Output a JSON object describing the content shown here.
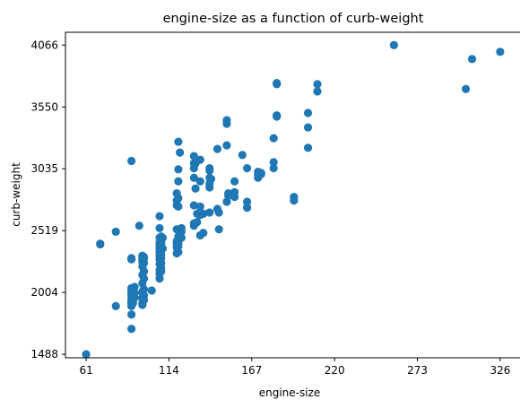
{
  "chart_data": {
    "type": "scatter",
    "title": "engine-size as a function of curb-weight",
    "xlabel": "engine-size",
    "ylabel": "curb-weight",
    "xlim": [
      47.75,
      339.25
    ],
    "ylim": [
      1459,
      4173
    ],
    "xticks": [
      61,
      114,
      167,
      220,
      273,
      326
    ],
    "yticks": [
      1488,
      2004,
      2519,
      3035,
      3550,
      4066
    ],
    "grid": false,
    "marker_color": "#1f77b4",
    "points": [
      [
        61,
        1488
      ],
      [
        70,
        2410
      ],
      [
        70,
        2405
      ],
      [
        80,
        1890
      ],
      [
        80,
        2510
      ],
      [
        90,
        1700
      ],
      [
        90,
        1820
      ],
      [
        90,
        1890
      ],
      [
        90,
        1910
      ],
      [
        90,
        1930
      ],
      [
        90,
        1950
      ],
      [
        90,
        1980
      ],
      [
        90,
        2000
      ],
      [
        90,
        2020
      ],
      [
        90,
        2040
      ],
      [
        90,
        2280
      ],
      [
        90,
        2290
      ],
      [
        90,
        3100
      ],
      [
        91,
        1915
      ],
      [
        91,
        1940
      ],
      [
        92,
        1960
      ],
      [
        92,
        2000
      ],
      [
        92,
        2050
      ],
      [
        95,
        2560
      ],
      [
        97,
        1900
      ],
      [
        97,
        1920
      ],
      [
        97,
        1960
      ],
      [
        97,
        2000
      ],
      [
        97,
        2010
      ],
      [
        97,
        2080
      ],
      [
        97,
        2150
      ],
      [
        97,
        2220
      ],
      [
        97,
        2260
      ],
      [
        97,
        2280
      ],
      [
        97,
        2300
      ],
      [
        97,
        2310
      ],
      [
        98,
        1940
      ],
      [
        98,
        1980
      ],
      [
        98,
        2030
      ],
      [
        98,
        2120
      ],
      [
        98,
        2180
      ],
      [
        98,
        2250
      ],
      [
        98,
        2290
      ],
      [
        98,
        2300
      ],
      [
        103,
        2020
      ],
      [
        108,
        2120
      ],
      [
        108,
        2160
      ],
      [
        108,
        2190
      ],
      [
        108,
        2240
      ],
      [
        108,
        2280
      ],
      [
        108,
        2310
      ],
      [
        108,
        2340
      ],
      [
        108,
        2370
      ],
      [
        108,
        2400
      ],
      [
        108,
        2420
      ],
      [
        108,
        2460
      ],
      [
        108,
        2540
      ],
      [
        108,
        2640
      ],
      [
        109,
        2180
      ],
      [
        109,
        2210
      ],
      [
        109,
        2250
      ],
      [
        109,
        2290
      ],
      [
        109,
        2320
      ],
      [
        109,
        2350
      ],
      [
        109,
        2380
      ],
      [
        109,
        2410
      ],
      [
        109,
        2430
      ],
      [
        109,
        2470
      ],
      [
        110,
        2370
      ],
      [
        110,
        2460
      ],
      [
        119,
        2330
      ],
      [
        119,
        2380
      ],
      [
        119,
        2410
      ],
      [
        119,
        2430
      ],
      [
        119,
        2530
      ],
      [
        119,
        2730
      ],
      [
        119,
        2770
      ],
      [
        119,
        2830
      ],
      [
        120,
        2340
      ],
      [
        120,
        2390
      ],
      [
        120,
        2410
      ],
      [
        120,
        2470
      ],
      [
        120,
        2720
      ],
      [
        120,
        2790
      ],
      [
        120,
        2930
      ],
      [
        120,
        3030
      ],
      [
        120,
        3260
      ],
      [
        121,
        3170
      ],
      [
        122,
        2460
      ],
      [
        122,
        2510
      ],
      [
        122,
        2540
      ],
      [
        130,
        2560
      ],
      [
        130,
        2580
      ],
      [
        130,
        2730
      ],
      [
        130,
        2960
      ],
      [
        130,
        3040
      ],
      [
        130,
        3080
      ],
      [
        130,
        3140
      ],
      [
        131,
        2870
      ],
      [
        131,
        3080
      ],
      [
        132,
        2590
      ],
      [
        132,
        2660
      ],
      [
        134,
        2480
      ],
      [
        134,
        2650
      ],
      [
        134,
        2720
      ],
      [
        134,
        2930
      ],
      [
        134,
        3110
      ],
      [
        136,
        2500
      ],
      [
        136,
        2660
      ],
      [
        140,
        2670
      ],
      [
        140,
        2880
      ],
      [
        140,
        2910
      ],
      [
        140,
        2960
      ],
      [
        140,
        3020
      ],
      [
        140,
        3040
      ],
      [
        141,
        2950
      ],
      [
        145,
        2700
      ],
      [
        145,
        3200
      ],
      [
        146,
        2530
      ],
      [
        146,
        2670
      ],
      [
        151,
        2760
      ],
      [
        151,
        3230
      ],
      [
        151,
        3410
      ],
      [
        151,
        3440
      ],
      [
        152,
        2810
      ],
      [
        152,
        2830
      ],
      [
        156,
        2800
      ],
      [
        156,
        2840
      ],
      [
        156,
        2930
      ],
      [
        161,
        3150
      ],
      [
        164,
        2710
      ],
      [
        164,
        2760
      ],
      [
        164,
        3040
      ],
      [
        171,
        2960
      ],
      [
        171,
        2990
      ],
      [
        171,
        3010
      ],
      [
        173,
        2990
      ],
      [
        173,
        3000
      ],
      [
        181,
        3040
      ],
      [
        181,
        3090
      ],
      [
        181,
        3290
      ],
      [
        183,
        3470
      ],
      [
        183,
        3480
      ],
      [
        183,
        3740
      ],
      [
        183,
        3750
      ],
      [
        194,
        2770
      ],
      [
        194,
        2800
      ],
      [
        203,
        3210
      ],
      [
        203,
        3380
      ],
      [
        203,
        3500
      ],
      [
        209,
        3680
      ],
      [
        209,
        3740
      ],
      [
        258,
        4066
      ],
      [
        304,
        3700
      ],
      [
        308,
        3950
      ],
      [
        326,
        4010
      ]
    ]
  }
}
